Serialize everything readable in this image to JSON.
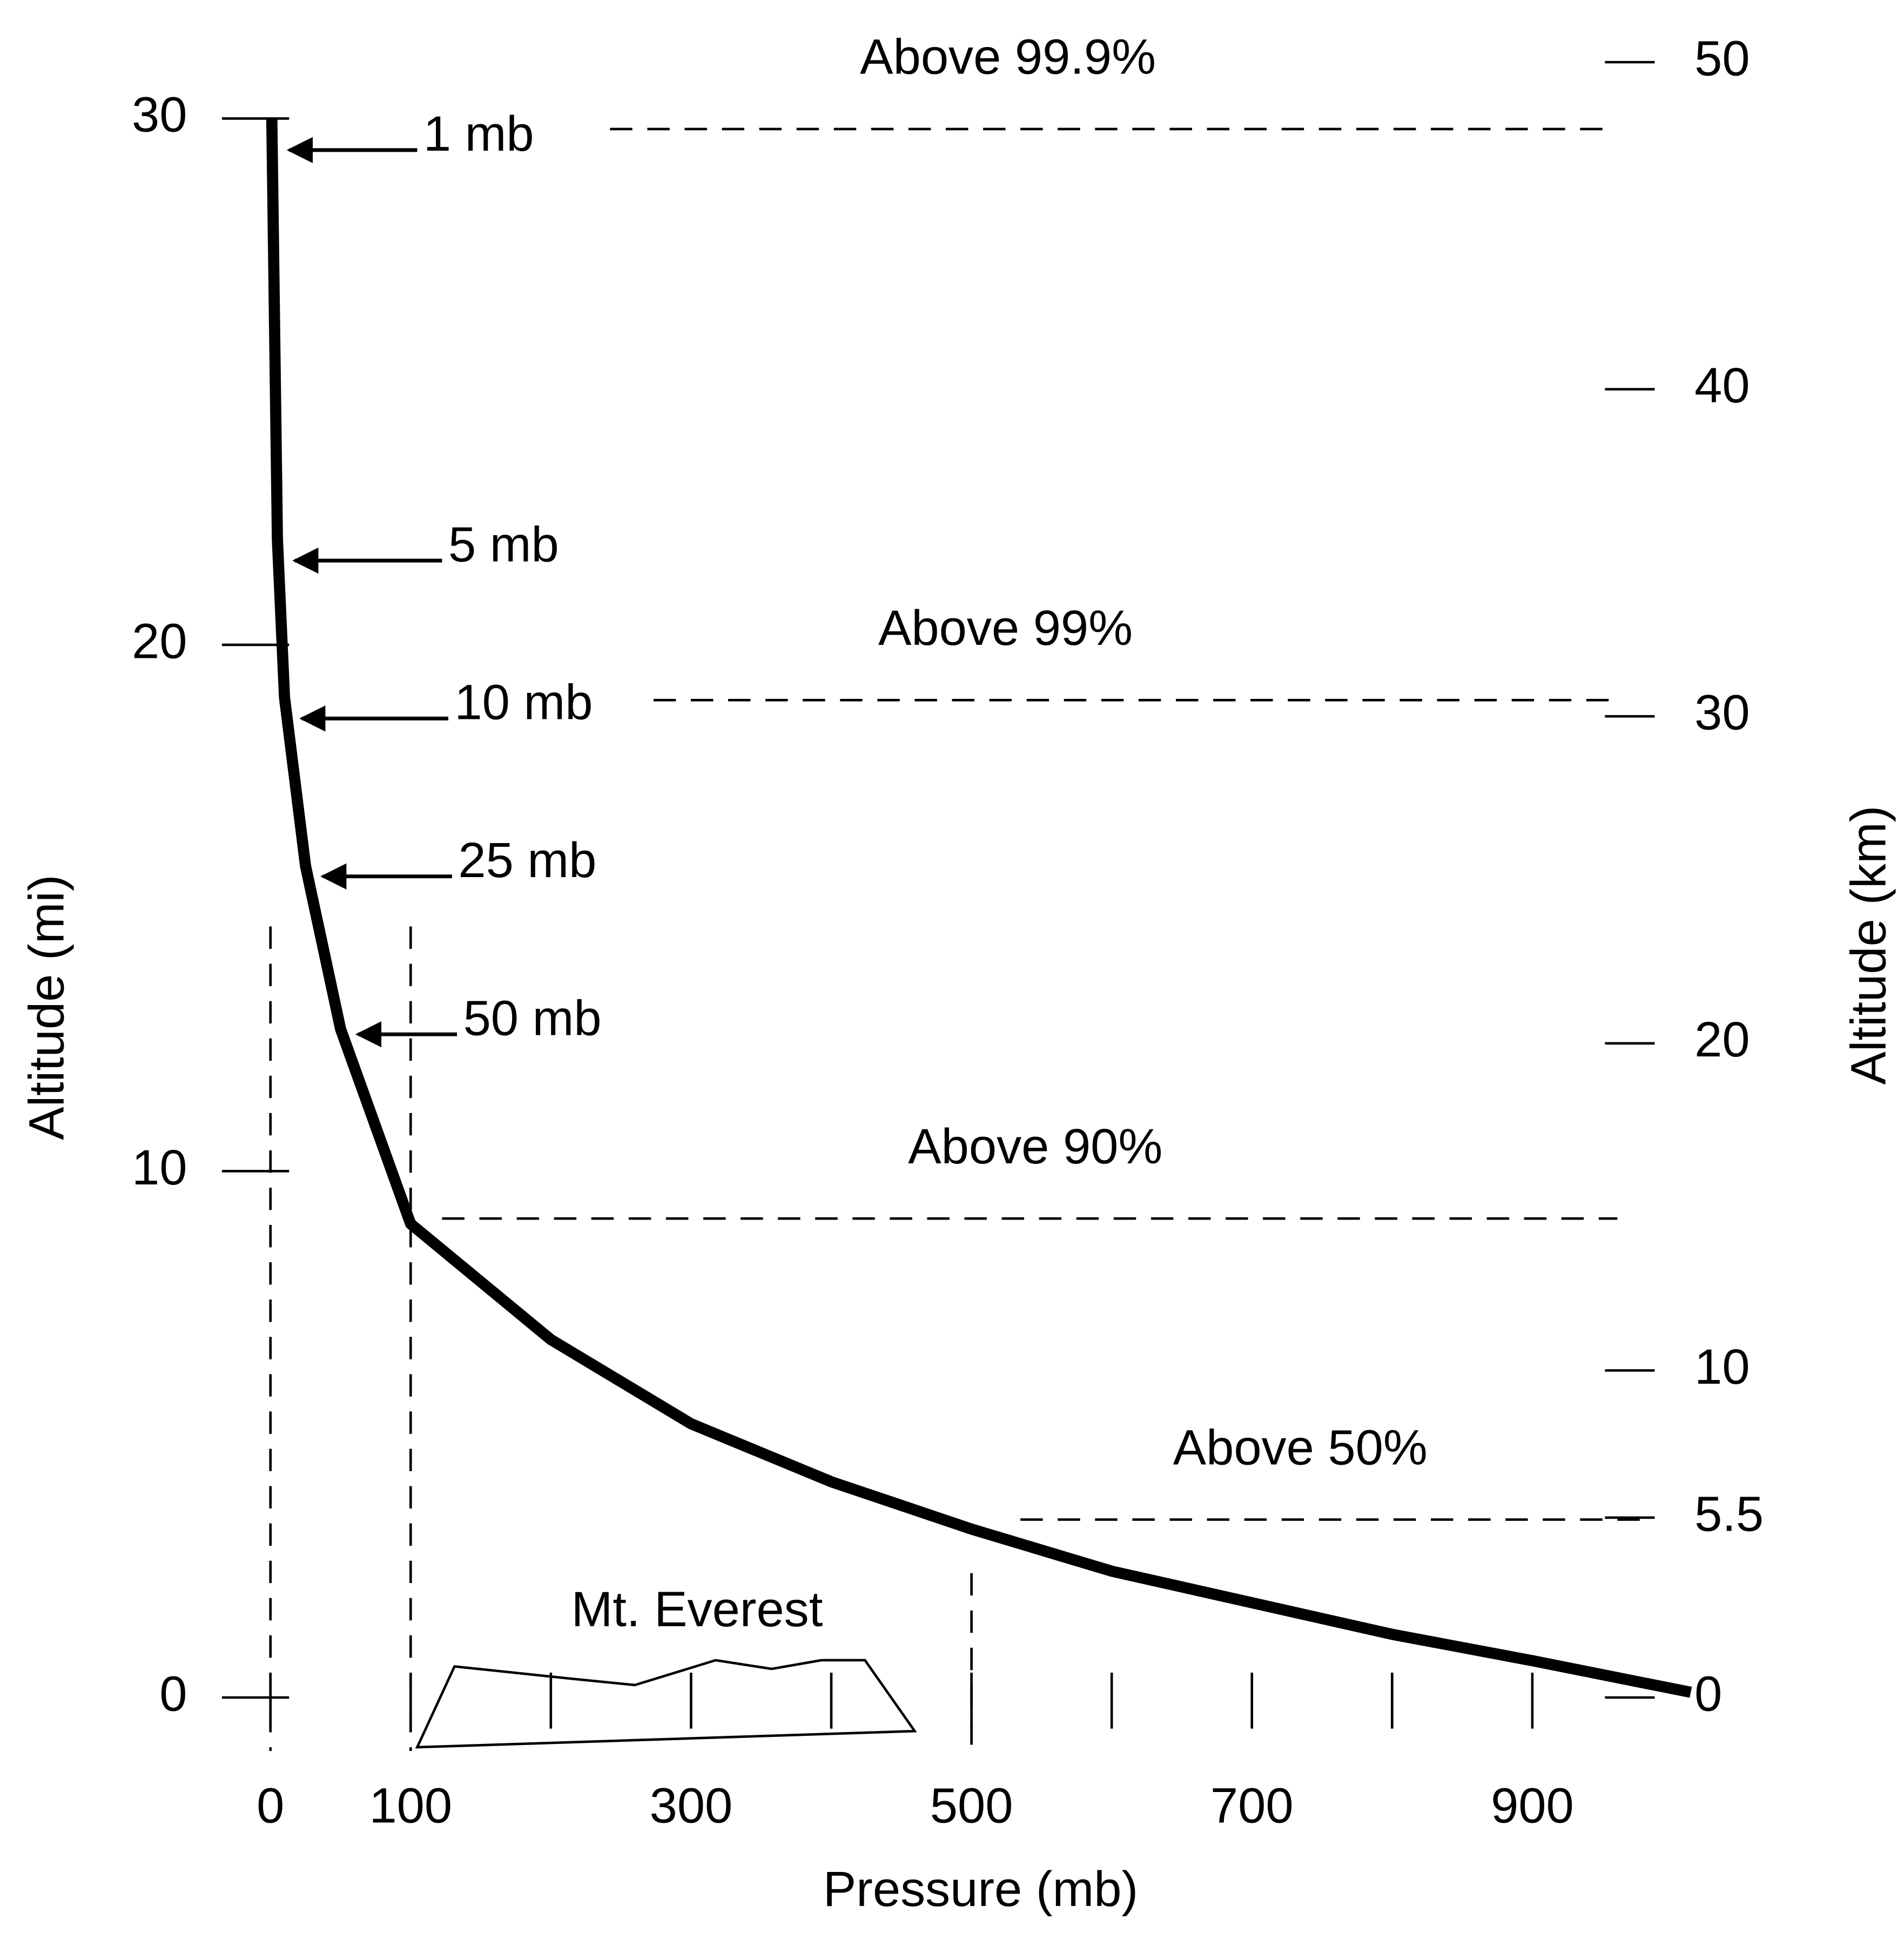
{
  "chart_data": {
    "type": "line",
    "xlabel": "Pressure (mb)",
    "ylabel": "Altitude (mi)",
    "y2label": "Altitude (km)",
    "x": [
      1,
      5,
      10,
      25,
      50,
      100,
      200,
      300,
      400,
      500,
      600,
      700,
      800,
      900,
      1013
    ],
    "values": [
      30,
      22,
      19,
      15.8,
      12.7,
      9,
      6.8,
      5.2,
      4.1,
      3.2,
      2.4,
      1.8,
      1.2,
      0.7,
      0.1
    ],
    "color": "#000000",
    "xlim": [
      0,
      1013
    ],
    "xticks": [
      0,
      100,
      300,
      500,
      700,
      900
    ],
    "xminor_ticks": [
      200,
      400,
      600,
      800
    ],
    "ylim": [
      0,
      31.07
    ],
    "yticks": [
      0,
      10,
      20,
      30
    ],
    "y2lim": [
      0,
      50
    ],
    "y2ticks": [
      0,
      5.5,
      10,
      20,
      30,
      40,
      50
    ],
    "guides_x": [
      0,
      100,
      500
    ],
    "levels": [
      {
        "label": "Above 99.9%",
        "value": 29.8
      },
      {
        "label": "Above 99%",
        "value": 18.95
      },
      {
        "label": "Above 90%",
        "value": 9.1
      },
      {
        "label": "Above 50%",
        "value": 3.38
      }
    ],
    "pressure_labels": [
      {
        "label": "1 mb",
        "value": 1,
        "altitude": 29.4
      },
      {
        "label": "5 mb",
        "value": 5,
        "altitude": 21.6
      },
      {
        "label": "10 mb",
        "value": 10,
        "altitude": 18.6
      },
      {
        "label": "25 mb",
        "value": 25,
        "altitude": 15.6
      },
      {
        "label": "50 mb",
        "value": 50,
        "altitude": 12.6
      }
    ],
    "everest_label": "Mt. Everest"
  }
}
